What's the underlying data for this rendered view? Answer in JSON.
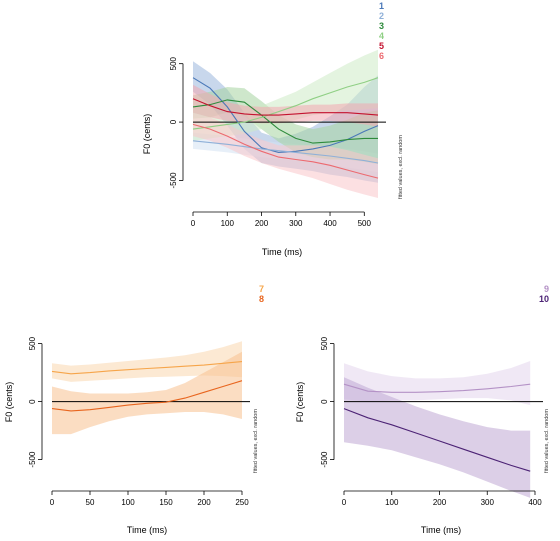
{
  "chart_data": [
    {
      "type": "line",
      "xlabel": "Time (ms)",
      "ylabel": "F0 (cents)",
      "side_note": "fitted values, excl. random",
      "xlim": [
        0,
        540
      ],
      "ylim": [
        -650,
        600
      ],
      "xticks": [
        0,
        100,
        200,
        300,
        400,
        500
      ],
      "yticks": [
        500,
        0,
        -500
      ],
      "bands": true,
      "legend_position": "top-right",
      "series": [
        {
          "name": "1",
          "color": "#4a78b8",
          "fill": "#9bb6dd",
          "x": [
            0,
            50,
            100,
            150,
            200,
            250,
            300,
            350,
            400,
            450,
            500,
            540
          ],
          "y": [
            380,
            290,
            130,
            -80,
            -220,
            -260,
            -250,
            -230,
            -200,
            -150,
            -80,
            -30
          ],
          "lower": [
            260,
            150,
            -30,
            -230,
            -350,
            -380,
            -400,
            -420,
            -450,
            -470,
            -500,
            -520
          ],
          "upper": [
            520,
            420,
            280,
            80,
            -90,
            -140,
            -100,
            -40,
            50,
            150,
            300,
            400
          ]
        },
        {
          "name": "2",
          "color": "#8fb0d8",
          "fill": "#d4e2f2",
          "x": [
            0,
            100,
            200,
            300,
            400,
            500,
            540
          ],
          "y": [
            -160,
            -190,
            -230,
            -260,
            -290,
            -330,
            -350
          ],
          "lower": [
            -230,
            -260,
            -300,
            -330,
            -370,
            -410,
            -430
          ],
          "upper": [
            -90,
            -120,
            -160,
            -190,
            -210,
            -250,
            -270
          ]
        },
        {
          "name": "3",
          "color": "#2e8b3c",
          "fill": "#a6d4a0",
          "x": [
            0,
            50,
            100,
            150,
            200,
            250,
            300,
            350,
            400,
            450,
            500,
            540
          ],
          "y": [
            130,
            150,
            190,
            170,
            60,
            -60,
            -140,
            -180,
            -170,
            -150,
            -140,
            -140
          ],
          "lower": [
            30,
            40,
            80,
            50,
            -60,
            -170,
            -260,
            -300,
            -320,
            -320,
            -340,
            -360
          ],
          "upper": [
            230,
            260,
            300,
            290,
            180,
            60,
            -20,
            -60,
            -30,
            20,
            80,
            100
          ]
        },
        {
          "name": "4",
          "color": "#8fcf84",
          "fill": "#cdebc6",
          "x": [
            0,
            50,
            100,
            150,
            200,
            250,
            300,
            350,
            400,
            450,
            500,
            540
          ],
          "y": [
            -60,
            -40,
            -20,
            0,
            40,
            90,
            140,
            200,
            250,
            300,
            340,
            380
          ],
          "lower": [
            -160,
            -140,
            -120,
            -100,
            -60,
            -20,
            20,
            60,
            80,
            100,
            110,
            120
          ],
          "upper": [
            40,
            60,
            80,
            100,
            140,
            200,
            260,
            340,
            420,
            500,
            570,
            620
          ]
        },
        {
          "name": "5",
          "color": "#c4122f",
          "fill": "#f2a7b1",
          "x": [
            0,
            50,
            100,
            150,
            200,
            250,
            300,
            350,
            400,
            450,
            500,
            540
          ],
          "y": [
            200,
            140,
            90,
            70,
            60,
            60,
            70,
            80,
            80,
            80,
            70,
            60
          ],
          "lower": [
            80,
            40,
            10,
            0,
            -10,
            -10,
            0,
            10,
            10,
            0,
            -20,
            -40
          ],
          "upper": [
            320,
            240,
            170,
            140,
            130,
            130,
            140,
            150,
            150,
            160,
            160,
            160
          ]
        },
        {
          "name": "6",
          "color": "#ec6a70",
          "fill": "#f9c7ca",
          "x": [
            0,
            50,
            100,
            150,
            200,
            250,
            300,
            350,
            400,
            450,
            500,
            540
          ],
          "y": [
            -20,
            -60,
            -120,
            -190,
            -250,
            -300,
            -320,
            -340,
            -370,
            -410,
            -450,
            -480
          ],
          "lower": [
            -120,
            -160,
            -220,
            -290,
            -350,
            -400,
            -440,
            -480,
            -530,
            -580,
            -620,
            -650
          ],
          "upper": [
            80,
            40,
            -20,
            -90,
            -150,
            -200,
            -200,
            -200,
            -210,
            -240,
            -280,
            -310
          ]
        }
      ]
    },
    {
      "type": "line",
      "xlabel": "Time (ms)",
      "ylabel": "F0 (cents)",
      "side_note": "fitted values, excl. random",
      "xlim": [
        0,
        250
      ],
      "ylim": [
        -650,
        600
      ],
      "xticks": [
        0,
        50,
        100,
        150,
        200,
        250
      ],
      "yticks": [
        500,
        0,
        -500
      ],
      "bands": true,
      "legend_position": "top-right",
      "series": [
        {
          "name": "7",
          "color": "#f6a54a",
          "fill": "#fad7ae",
          "x": [
            0,
            25,
            50,
            75,
            100,
            125,
            150,
            175,
            200,
            225,
            250
          ],
          "y": [
            260,
            240,
            250,
            265,
            275,
            285,
            295,
            305,
            315,
            330,
            345
          ],
          "lower": [
            200,
            170,
            180,
            190,
            200,
            210,
            215,
            220,
            225,
            220,
            210
          ],
          "upper": [
            330,
            310,
            320,
            335,
            350,
            365,
            380,
            400,
            430,
            470,
            520
          ]
        },
        {
          "name": "8",
          "color": "#e8651e",
          "fill": "#f7c190",
          "x": [
            0,
            25,
            50,
            75,
            100,
            125,
            150,
            175,
            200,
            225,
            250
          ],
          "y": [
            -60,
            -80,
            -70,
            -50,
            -30,
            -15,
            -5,
            30,
            80,
            130,
            180
          ],
          "lower": [
            -280,
            -280,
            -220,
            -170,
            -130,
            -110,
            -100,
            -90,
            -90,
            -110,
            -150
          ],
          "upper": [
            130,
            90,
            70,
            70,
            70,
            80,
            100,
            160,
            250,
            340,
            430
          ]
        }
      ]
    },
    {
      "type": "line",
      "xlabel": "Time (ms)",
      "ylabel": "F0 (cents)",
      "side_note": "fitted values, excl. random",
      "xlim": [
        0,
        400
      ],
      "ylim": [
        -650,
        600
      ],
      "xticks": [
        0,
        100,
        200,
        300,
        400
      ],
      "yticks": [
        500,
        0,
        -500
      ],
      "bands": true,
      "legend_position": "top-right",
      "series": [
        {
          "name": "9",
          "color": "#b492c6",
          "fill": "#e4d5ec",
          "x": [
            0,
            50,
            100,
            150,
            200,
            250,
            300,
            350,
            390
          ],
          "y": [
            150,
            90,
            80,
            80,
            85,
            95,
            110,
            130,
            150
          ],
          "lower": [
            20,
            0,
            10,
            10,
            20,
            30,
            30,
            10,
            -30
          ],
          "upper": [
            330,
            260,
            220,
            200,
            200,
            210,
            240,
            290,
            350
          ]
        },
        {
          "name": "10",
          "color": "#4c2375",
          "fill": "#c0a8d3",
          "x": [
            0,
            50,
            100,
            150,
            200,
            250,
            300,
            350,
            390
          ],
          "y": [
            -60,
            -140,
            -200,
            -270,
            -340,
            -410,
            -480,
            -550,
            -600
          ],
          "lower": [
            -350,
            -380,
            -420,
            -480,
            -540,
            -610,
            -690,
            -770,
            -830
          ],
          "upper": [
            210,
            120,
            40,
            -40,
            -110,
            -170,
            -220,
            -250,
            -250
          ]
        }
      ]
    }
  ]
}
